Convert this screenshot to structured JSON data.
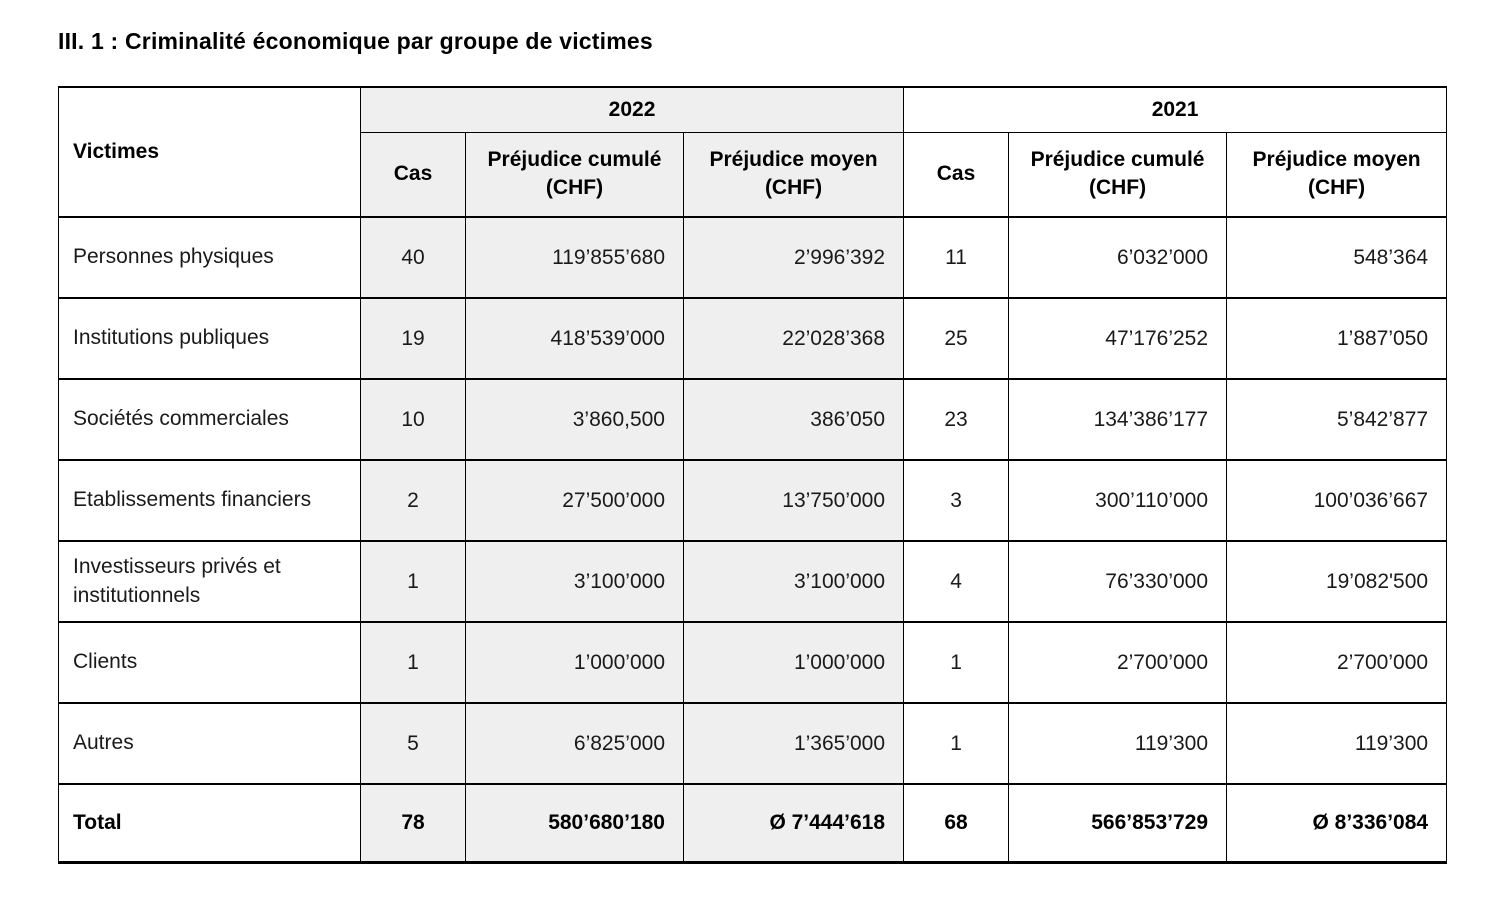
{
  "page": {
    "title": "III. 1 : Criminalité économique par groupe de victimes"
  },
  "table": {
    "headers": {
      "victims": "Victimes",
      "year_left": "2022",
      "year_right": "2021",
      "cas_2022": "Cas",
      "cumule_2022": "Préjudice cumulé (CHF)",
      "moyen_2022": "Préjudice moyen (CHF)",
      "cas_2021": "Cas",
      "cumule_2021": "Préjudice cumulé (CHF)",
      "moyen_2021": "Préjudice moyen (CHF)"
    },
    "rows": [
      {
        "label": "Personnes physiques",
        "values": [
          "40",
          "119’855’680",
          "2’996’392",
          "11",
          "6’032’000",
          "548’364"
        ]
      },
      {
        "label": "Institutions publiques",
        "values": [
          "19",
          "418’539’000",
          "22’028’368",
          "25",
          "47’176’252",
          "1’887’050"
        ]
      },
      {
        "label": "Sociétés commerciales",
        "values": [
          "10",
          "3’860,500",
          "386’050",
          "23",
          "134’386’177",
          "5’842’877"
        ]
      },
      {
        "label": "Etablissements financiers",
        "values": [
          "2",
          "27’500’000",
          "13’750’000",
          "3",
          "300’110’000",
          "100’036’667"
        ]
      },
      {
        "label": "Investisseurs privés et institutionnels",
        "values": [
          "1",
          "3’100’000",
          "3’100’000",
          "4",
          "76’330’000",
          "19’082'500"
        ]
      },
      {
        "label": "Clients",
        "values": [
          "1",
          "1’000’000",
          "1’000’000",
          "1",
          "2’700’000",
          "2’700’000"
        ]
      },
      {
        "label": "Autres",
        "values": [
          "5",
          "6’825’000",
          "1’365’000",
          "1",
          "119’300",
          "119’300"
        ]
      }
    ],
    "total_row": {
      "label": "Total",
      "values": [
        "78",
        "580’680’180",
        "Ø 7’444’618",
        "68",
        "566’853’729",
        "Ø 8’336’084"
      ]
    },
    "colors": {
      "group_2022_bg": "#efefef",
      "border": "#000000",
      "text": "#1a1a1a"
    }
  }
}
